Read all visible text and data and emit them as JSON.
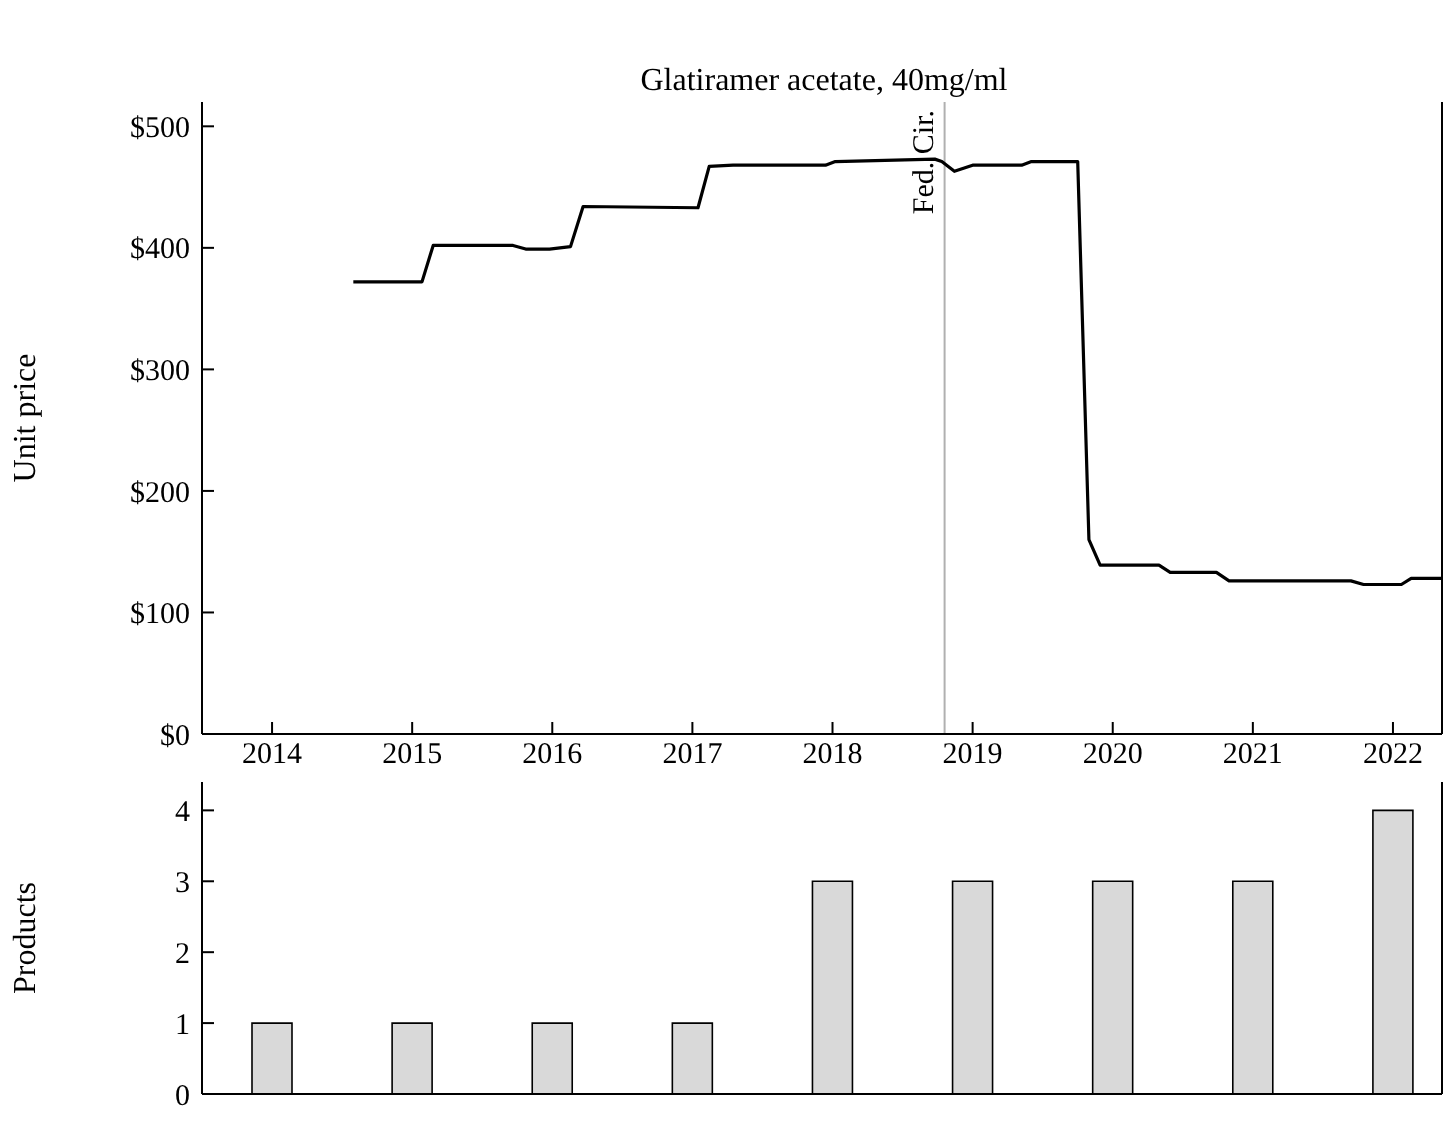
{
  "chart_data": [
    {
      "type": "line",
      "title": "Glatiramer acetate, 40mg/ml",
      "ylabel": "Unit price",
      "x": [
        2014.58,
        2015.07,
        2015.15,
        2015.72,
        2015.81,
        2015.98,
        2016.13,
        2016.22,
        2017.04,
        2017.12,
        2017.29,
        2017.95,
        2018.02,
        2018.73,
        2018.78,
        2018.87,
        2019.0,
        2019.35,
        2019.42,
        2019.75,
        2019.83,
        2019.91,
        2020.33,
        2020.41,
        2020.74,
        2020.83,
        2021.7,
        2021.79,
        2022.06,
        2022.13,
        2022.35
      ],
      "series": [
        {
          "color": "#000000",
          "values": [
            372,
            372,
            402,
            402,
            399,
            399,
            401,
            434,
            433,
            467,
            468,
            468,
            471,
            473,
            471,
            463,
            468,
            468,
            471,
            471,
            160,
            139,
            139,
            133,
            133,
            126,
            126,
            123,
            123,
            128,
            128
          ]
        }
      ],
      "xlim": [
        2013.5,
        2022.35
      ],
      "xticks": [
        2014,
        2015,
        2016,
        2017,
        2018,
        2019,
        2020,
        2021,
        2022
      ],
      "ylim": [
        0,
        520
      ],
      "yticks": [
        {
          "value": 0,
          "label": "$0"
        },
        {
          "value": 100,
          "label": "$100"
        },
        {
          "value": 200,
          "label": "$200"
        },
        {
          "value": 300,
          "label": "$300"
        },
        {
          "value": 400,
          "label": "$400"
        },
        {
          "value": 500,
          "label": "$500"
        }
      ],
      "ref_lines": [
        {
          "axis": "x",
          "value": 2018.8,
          "label": "Fed. Cir.",
          "color": "#b0b0b0"
        }
      ]
    },
    {
      "type": "bar",
      "ylabel": "Products",
      "x": [
        2014,
        2015,
        2016,
        2017,
        2018,
        2019,
        2020,
        2021,
        2022
      ],
      "values": [
        1,
        1,
        1,
        1,
        3,
        3,
        3,
        3,
        4
      ],
      "color": "#d9d9d9",
      "xlim": [
        2013.5,
        2022.35
      ],
      "ylim": [
        0,
        4.4
      ],
      "yticks": [
        0,
        1,
        2,
        3,
        4
      ],
      "tick_labels": "y"
    }
  ]
}
